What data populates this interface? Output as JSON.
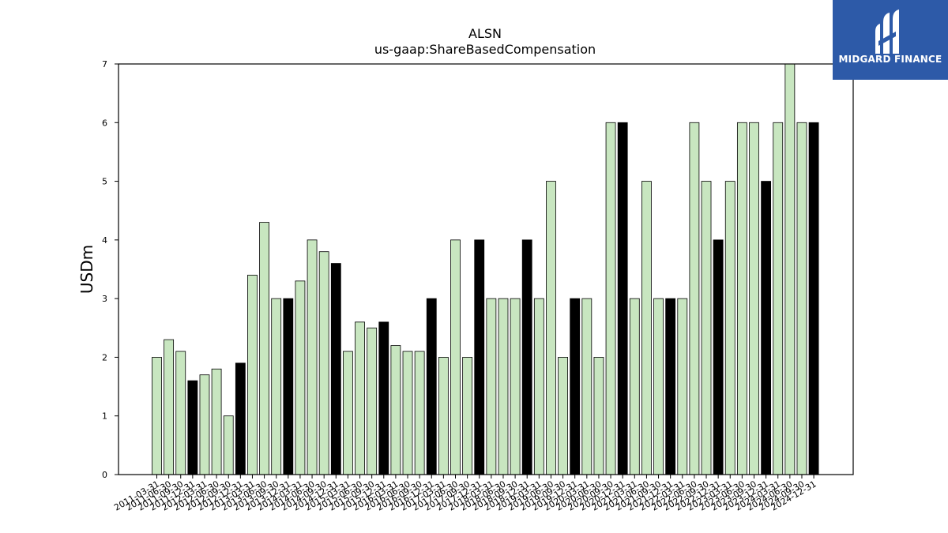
{
  "logo": {
    "text": "MIDGARD FINANCE"
  },
  "chart_data": {
    "type": "bar",
    "title": "ALSN",
    "subtitle": "us-gaap:ShareBasedCompensation",
    "ylabel": "USDm",
    "xlabel": "",
    "ylim": [
      0,
      7
    ],
    "yticks": [
      0,
      1,
      2,
      3,
      4,
      5,
      6,
      7
    ],
    "grid": false,
    "colors": {
      "quarter": "#c8e6c0",
      "annual": "#000000",
      "edge": "#000000"
    },
    "categories": [
      "2011-03-31",
      "2011-06-30",
      "2011-09-30",
      "2011-12-31",
      "2012-03-31",
      "2012-06-30",
      "2012-09-30",
      "2012-12-31",
      "2013-03-31",
      "2013-06-30",
      "2013-09-30",
      "2013-12-31",
      "2014-03-31",
      "2014-06-30",
      "2014-09-30",
      "2014-12-31",
      "2015-03-31",
      "2015-06-30",
      "2015-09-30",
      "2015-12-31",
      "2016-03-31",
      "2016-06-30",
      "2016-09-30",
      "2016-12-31",
      "2017-03-31",
      "2017-06-30",
      "2017-09-30",
      "2017-12-31",
      "2018-03-31",
      "2018-06-30",
      "2018-09-30",
      "2018-12-31",
      "2019-03-31",
      "2019-06-30",
      "2019-09-30",
      "2019-12-31",
      "2020-03-31",
      "2020-06-30",
      "2020-09-30",
      "2020-12-31",
      "2021-03-31",
      "2021-06-30",
      "2021-09-30",
      "2021-12-31",
      "2022-03-31",
      "2022-06-30",
      "2022-09-30",
      "2022-12-31",
      "2023-03-31",
      "2023-06-30",
      "2023-09-30",
      "2023-12-31",
      "2024-03-31",
      "2024-06-30",
      "2024-09-30",
      "2024-12-31"
    ],
    "values": [
      2,
      2.3,
      2.1,
      1.6,
      1.7,
      1.8,
      1,
      1.9,
      3.4,
      4.3,
      3,
      3,
      3.3,
      4,
      3.8,
      3.6,
      2.1,
      2.6,
      2.5,
      2.6,
      2.2,
      2.1,
      2.1,
      3,
      2,
      4,
      2,
      4,
      3,
      3,
      3,
      4,
      3,
      5,
      2,
      3,
      3,
      2,
      6,
      6,
      3,
      5,
      3,
      3,
      3,
      6,
      5,
      4,
      5,
      6,
      6,
      5,
      6,
      7,
      6,
      6
    ]
  }
}
